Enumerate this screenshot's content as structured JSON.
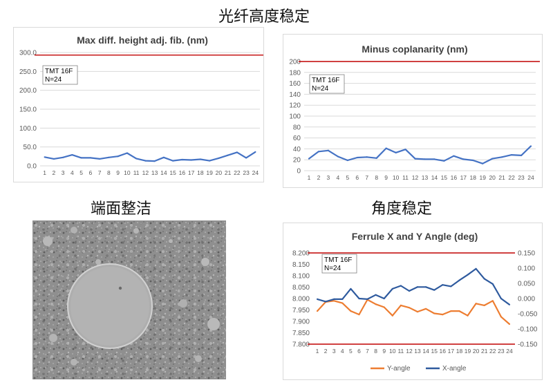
{
  "headings": {
    "fiber_height": "光纤高度稳定",
    "endface": "端面整洁",
    "angle": "角度稳定"
  },
  "chart_data": [
    {
      "type": "line",
      "title": "Max diff. height adj. fib. (nm)",
      "annotation": [
        "TMT 16F",
        "N=24"
      ],
      "categories": [
        "1",
        "2",
        "3",
        "4",
        "5",
        "6",
        "7",
        "8",
        "9",
        "10",
        "11",
        "12",
        "13",
        "14",
        "15",
        "16",
        "17",
        "18",
        "19",
        "20",
        "21",
        "22",
        "23",
        "24"
      ],
      "series": [
        {
          "color": "#4472c4",
          "values": [
            24,
            19,
            23,
            30,
            22,
            22,
            19,
            23,
            26,
            35,
            20,
            14,
            13,
            23,
            14,
            17,
            16,
            18,
            14,
            21,
            29,
            37,
            22,
            38
          ]
        }
      ],
      "reference_line": {
        "value": 303,
        "color": "#c00000"
      },
      "yticks": [
        "0.0",
        "50.0",
        "100.0",
        "150.0",
        "200.0",
        "250.0",
        "300.0"
      ],
      "ylim": [
        0,
        310
      ],
      "grid": true
    },
    {
      "type": "line",
      "title": "Minus coplanarity (nm)",
      "annotation": [
        "TMT 16F",
        "N=24"
      ],
      "categories": [
        "1",
        "2",
        "3",
        "4",
        "5",
        "6",
        "7",
        "8",
        "9",
        "10",
        "11",
        "12",
        "13",
        "14",
        "15",
        "16",
        "17",
        "18",
        "19",
        "20",
        "21",
        "22",
        "23",
        "24"
      ],
      "series": [
        {
          "color": "#4472c4",
          "values": [
            22,
            35,
            37,
            26,
            19,
            24,
            25,
            23,
            41,
            33,
            39,
            22,
            21,
            21,
            18,
            27,
            21,
            19,
            13,
            22,
            25,
            29,
            28,
            45
          ]
        }
      ],
      "reference_line": {
        "value": 200,
        "color": "#c00000"
      },
      "yticks": [
        "0",
        "20",
        "40",
        "60",
        "80",
        "100",
        "120",
        "140",
        "160",
        "180",
        "200"
      ],
      "ylim": [
        0,
        200
      ],
      "grid": true
    },
    {
      "type": "line",
      "title": "Ferrule X and Y Angle (deg)",
      "annotation": [
        "TMT 16F",
        "N=24"
      ],
      "categories": [
        "1",
        "2",
        "3",
        "4",
        "5",
        "6",
        "7",
        "8",
        "9",
        "10",
        "11",
        "12",
        "13",
        "14",
        "15",
        "16",
        "17",
        "18",
        "19",
        "20",
        "21",
        "22",
        "23",
        "24"
      ],
      "series": [
        {
          "name": "Y-angle",
          "axis": "left",
          "color": "#ed7d31",
          "values": [
            7.945,
            7.985,
            7.99,
            7.98,
            7.945,
            7.93,
            7.995,
            7.975,
            7.962,
            7.925,
            7.97,
            7.96,
            7.942,
            7.955,
            7.935,
            7.93,
            7.945,
            7.945,
            7.925,
            7.978,
            7.97,
            7.99,
            7.92,
            7.888
          ]
        },
        {
          "name": "X-angle",
          "axis": "right",
          "color": "#2e5a9e",
          "values": [
            -0.002,
            -0.01,
            -0.002,
            -0.002,
            0.032,
            0.0,
            -0.002,
            0.012,
            0.0,
            0.032,
            0.042,
            0.025,
            0.038,
            0.038,
            0.028,
            0.045,
            0.04,
            0.06,
            0.078,
            0.098,
            0.065,
            0.048,
            0.0,
            -0.02
          ]
        }
      ],
      "reference_lines": [
        {
          "value": 8.2,
          "axis": "left",
          "color": "#c00000"
        },
        {
          "value": 7.8,
          "axis": "left",
          "color": "#c00000"
        }
      ],
      "yticks_left": [
        "7.800",
        "7.850",
        "7.900",
        "7.950",
        "8.000",
        "8.050",
        "8.100",
        "8.150",
        "8.200"
      ],
      "ylim_left": [
        7.8,
        8.2
      ],
      "yticks_right": [
        "-0.150",
        "-0.100",
        "-0.050",
        "0.000",
        "0.050",
        "0.100",
        "0.150"
      ],
      "ylim_right": [
        -0.15,
        0.15
      ],
      "legend_position": "bottom",
      "grid": false
    }
  ],
  "colors": {
    "axis_text": "#595959",
    "title_text": "#404040",
    "grid": "#d9d9d9"
  }
}
